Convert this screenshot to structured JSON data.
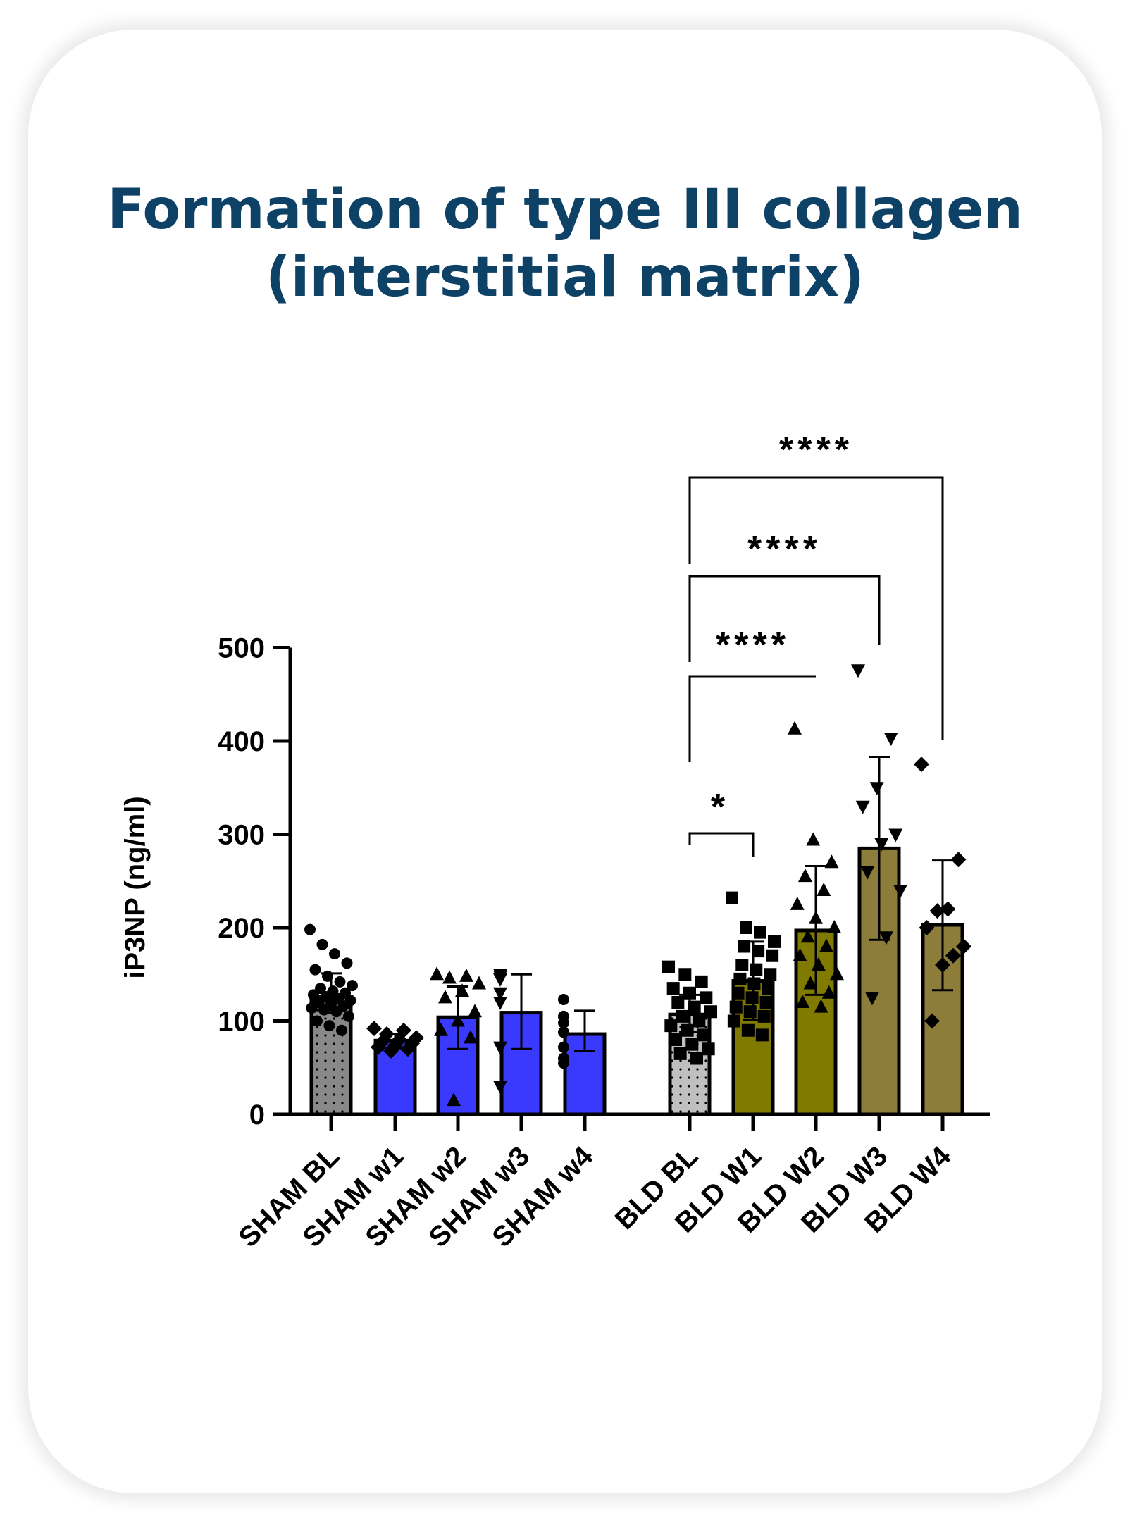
{
  "colors": {
    "title": "#0d4166",
    "sham_bl": "#888888",
    "sham_weeks": "#3a3aff",
    "bld_bl": "#bfbfbf",
    "bld_w1_w2": "#807a00",
    "bld_w3_w4": "#8c7d3a"
  },
  "chart_data": {
    "type": "bar",
    "title_line1": "Formation of type III collagen",
    "title_line2": "(interstitial matrix)",
    "ylabel": "iP3NP (ng/ml)",
    "xlabel": "",
    "ylim": [
      0,
      500
    ],
    "yticks": [
      "0",
      "100",
      "200",
      "300",
      "400",
      "500"
    ],
    "grid": false,
    "categories": [
      "SHAM BL",
      "SHAM w1",
      "SHAM w2",
      "SHAM w3",
      "SHAM w4",
      "BLD BL",
      "BLD W1",
      "BLD W2",
      "BLD W3",
      "BLD W4"
    ],
    "values": [
      126,
      79,
      104,
      109,
      86,
      107,
      143,
      197,
      285,
      203
    ],
    "error": [
      [
        109,
        151
      ],
      [
        71,
        86
      ],
      [
        70,
        137
      ],
      [
        70,
        150
      ],
      [
        68,
        111
      ],
      [
        88,
        128
      ],
      [
        101,
        185
      ],
      [
        128,
        266
      ],
      [
        187,
        383
      ],
      [
        133,
        272
      ]
    ],
    "markers": [
      "circle",
      "diamond",
      "triangle-up",
      "triangle-down",
      "circle",
      "square",
      "square",
      "triangle-up",
      "triangle-down",
      "diamond"
    ],
    "points": [
      [
        198,
        182,
        172,
        162,
        155,
        148,
        142,
        138,
        135,
        132,
        130,
        128,
        126,
        124,
        122,
        120,
        118,
        116,
        114,
        112,
        110,
        105,
        100,
        95,
        90
      ],
      [
        92,
        90,
        86,
        82,
        80,
        78,
        76,
        74,
        72,
        70,
        68
      ],
      [
        150,
        148,
        146,
        140,
        132,
        125,
        110,
        100,
        90,
        82,
        15
      ],
      [
        150,
        148,
        145,
        130,
        120,
        72,
        30
      ],
      [
        123,
        105,
        98,
        88,
        72,
        60,
        55
      ],
      [
        158,
        150,
        142,
        135,
        130,
        125,
        120,
        115,
        110,
        105,
        100,
        95,
        90,
        85,
        80,
        75,
        70,
        65,
        60
      ],
      [
        232,
        200,
        195,
        185,
        180,
        175,
        170,
        160,
        155,
        150,
        145,
        140,
        135,
        130,
        125,
        120,
        115,
        110,
        105,
        100,
        90,
        85
      ],
      [
        413,
        294,
        270,
        255,
        240,
        225,
        210,
        200,
        190,
        180,
        170,
        160,
        150,
        140,
        130,
        120,
        115
      ],
      [
        476,
        403,
        350,
        330,
        300,
        290,
        260,
        240,
        190,
        125
      ],
      [
        375,
        273,
        220,
        218,
        200,
        180,
        170,
        160,
        100
      ]
    ],
    "significance": [
      {
        "from": "BLD BL",
        "to": "BLD W1",
        "label": "*"
      },
      {
        "from": "BLD BL",
        "to": "BLD W2",
        "label": "****"
      },
      {
        "from": "BLD BL",
        "to": "BLD W3",
        "label": "****"
      },
      {
        "from": "BLD BL",
        "to": "BLD W4",
        "label": "****"
      }
    ]
  }
}
